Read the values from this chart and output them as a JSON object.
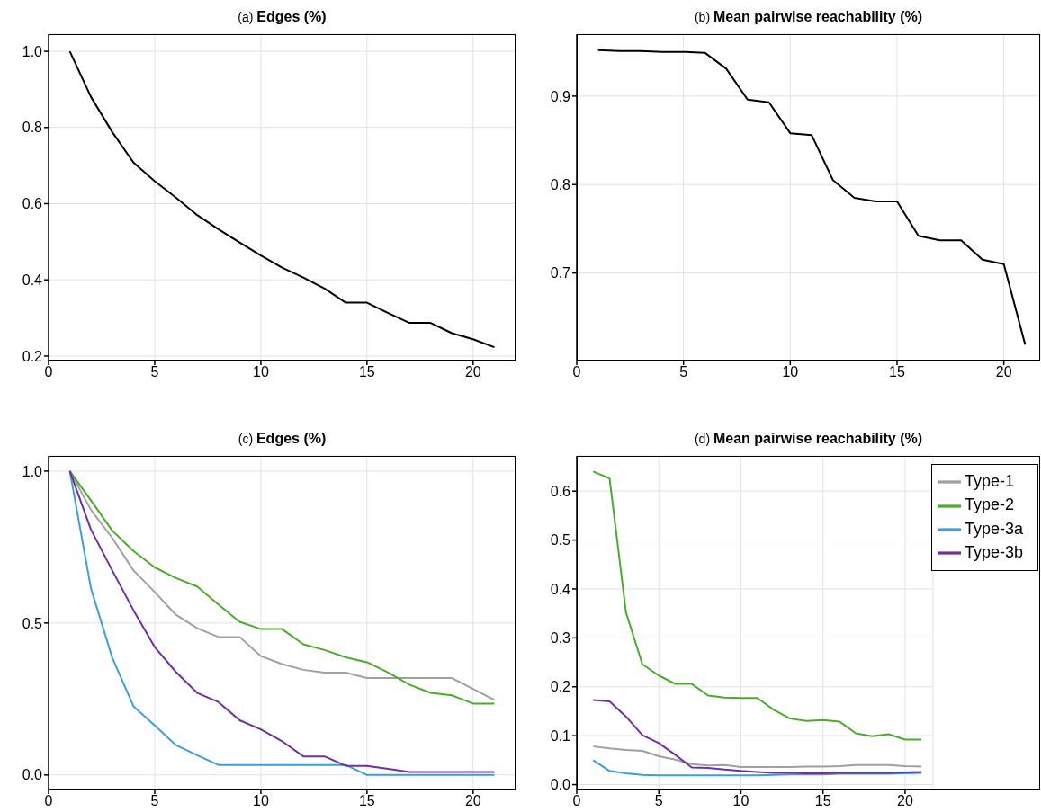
{
  "chart_data": [
    {
      "type": "line",
      "title": "(a) Edges (%)",
      "x": [
        1,
        2,
        3,
        4,
        5,
        6,
        7,
        8,
        9,
        10,
        11,
        12,
        13,
        14,
        15,
        16,
        17,
        18,
        19,
        20,
        21
      ],
      "series": [
        {
          "color": "#000000",
          "values": [
            1.0,
            0.88,
            0.788,
            0.708,
            0.659,
            0.616,
            0.57,
            0.533,
            0.498,
            0.464,
            0.432,
            0.406,
            0.377,
            0.34,
            0.34,
            0.313,
            0.287,
            0.287,
            0.26,
            0.244,
            0.223
          ]
        }
      ],
      "xlim": [
        0,
        22
      ],
      "xticks": [
        0,
        5,
        10,
        15,
        20
      ],
      "ylim": [
        0.188,
        1.045
      ],
      "yticks": [
        {
          "value": 0.2,
          "label": "0.2"
        },
        {
          "value": 0.4,
          "label": "0.4"
        },
        {
          "value": 0.6,
          "label": "0.6"
        },
        {
          "value": 0.8,
          "label": "0.8"
        },
        {
          "value": 1,
          "label": "1.0"
        }
      ],
      "grid": true
    },
    {
      "type": "line",
      "title": "(b) Mean pairwise reachability (%)",
      "x": [
        1,
        2,
        3,
        4,
        5,
        6,
        7,
        8,
        9,
        10,
        11,
        12,
        13,
        14,
        15,
        16,
        17,
        18,
        19,
        20,
        21
      ],
      "series": [
        {
          "color": "#000000",
          "values": [
            0.952,
            0.951,
            0.951,
            0.95,
            0.95,
            0.949,
            0.931,
            0.896,
            0.893,
            0.858,
            0.856,
            0.805,
            0.785,
            0.781,
            0.781,
            0.742,
            0.737,
            0.737,
            0.715,
            0.71,
            0.619
          ]
        }
      ],
      "xlim": [
        0,
        21.7
      ],
      "xticks": [
        0,
        5,
        10,
        15,
        20
      ],
      "ylim": [
        0.601,
        0.97
      ],
      "yticks": [
        0.7,
        0.8,
        0.9
      ],
      "grid": true
    },
    {
      "type": "line",
      "title": "(c) Edges (%)",
      "x": [
        1,
        2,
        3,
        4,
        5,
        6,
        7,
        8,
        9,
        10,
        11,
        12,
        13,
        14,
        15,
        16,
        17,
        18,
        19,
        20,
        21
      ],
      "series": [
        {
          "color": "#a0a0a0",
          "values": [
            1.0,
            0.872,
            0.78,
            0.673,
            0.602,
            0.527,
            0.483,
            0.454,
            0.454,
            0.391,
            0.365,
            0.346,
            0.337,
            0.337,
            0.319,
            0.319,
            0.319,
            0.319,
            0.319,
            0.283,
            0.247
          ]
        },
        {
          "color": "#4daa2c",
          "values": [
            1.0,
            0.903,
            0.804,
            0.737,
            0.683,
            0.648,
            0.62,
            0.561,
            0.504,
            0.48,
            0.48,
            0.43,
            0.411,
            0.387,
            0.371,
            0.337,
            0.297,
            0.27,
            0.262,
            0.235,
            0.235
          ]
        },
        {
          "color": "#3a9fdc",
          "values": [
            1.0,
            0.613,
            0.386,
            0.226,
            0.163,
            0.098,
            0.065,
            0.033,
            0.033,
            0.033,
            0.033,
            0.033,
            0.033,
            0.033,
            0,
            0,
            0,
            0,
            0,
            0,
            0
          ]
        },
        {
          "color": "#7030a0",
          "values": [
            1.0,
            0.807,
            0.673,
            0.542,
            0.421,
            0.339,
            0.27,
            0.24,
            0.18,
            0.15,
            0.111,
            0.061,
            0.061,
            0.03,
            0.03,
            0.02,
            0.01,
            0.01,
            0.01,
            0.01,
            0.01
          ]
        }
      ],
      "xlim": [
        0,
        22
      ],
      "xticks": [
        0,
        5,
        10,
        15,
        20
      ],
      "ylim": [
        -0.048,
        1.05
      ],
      "yticks": [
        {
          "value": 0,
          "label": "0.0"
        },
        {
          "value": 0.5,
          "label": "0.5"
        },
        {
          "value": 1,
          "label": "1.0"
        }
      ],
      "grid": true
    },
    {
      "type": "line",
      "title": "(d) Mean pairwise reachability (%)",
      "x": [
        1,
        2,
        3,
        4,
        5,
        6,
        7,
        8,
        9,
        10,
        11,
        12,
        13,
        14,
        15,
        16,
        17,
        18,
        19,
        20,
        21
      ],
      "series": [
        {
          "name": "Type-1",
          "color": "#a0a0a0",
          "values": [
            0.078,
            0.074,
            0.071,
            0.069,
            0.058,
            0.051,
            0.042,
            0.039,
            0.04,
            0.036,
            0.036,
            0.036,
            0.036,
            0.037,
            0.037,
            0.038,
            0.04,
            0.04,
            0.04,
            0.038,
            0.037
          ]
        },
        {
          "name": "Type-2",
          "color": "#4daa2c",
          "values": [
            0.64,
            0.626,
            0.352,
            0.246,
            0.223,
            0.206,
            0.206,
            0.182,
            0.178,
            0.177,
            0.177,
            0.153,
            0.135,
            0.13,
            0.132,
            0.129,
            0.105,
            0.099,
            0.103,
            0.092,
            0.092
          ]
        },
        {
          "name": "Type-3a",
          "color": "#3a9fdc",
          "values": [
            0.05,
            0.028,
            0.023,
            0.02,
            0.019,
            0.019,
            0.019,
            0.019,
            0.019,
            0.019,
            0.019,
            0.02,
            0.021,
            0.021,
            0.021,
            0.022,
            0.022,
            0.022,
            0.022,
            0.023,
            0.024
          ]
        },
        {
          "name": "Type-3b",
          "color": "#7030a0",
          "values": [
            0.173,
            0.17,
            0.139,
            0.101,
            0.085,
            0.061,
            0.035,
            0.034,
            0.031,
            0.028,
            0.026,
            0.024,
            0.024,
            0.023,
            0.023,
            0.024,
            0.024,
            0.024,
            0.024,
            0.025,
            0.026
          ]
        }
      ],
      "xlim": [
        0,
        21.7
      ],
      "xticks": [
        0,
        5,
        10,
        15,
        20
      ],
      "ylim": [
        -0.01,
        0.672
      ],
      "yticks": [
        {
          "value": 0,
          "label": "0.0"
        },
        0.1,
        0.2,
        0.3,
        0.4,
        0.5,
        0.6
      ],
      "grid": true,
      "legend": "top right"
    }
  ]
}
